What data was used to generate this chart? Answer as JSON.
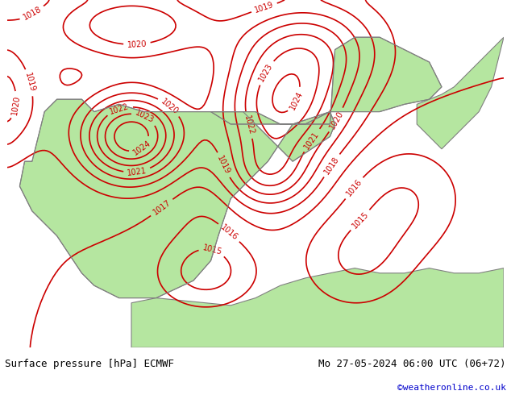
{
  "title_left": "Surface pressure [hPa] ECMWF",
  "title_right": "Mo 27-05-2024 06:00 UTC (06+72)",
  "credit": "©weatheronline.co.uk",
  "bg_color_land": "#b5e6a0",
  "bg_color_sea": "#d8d8d8",
  "contour_color": "#cc0000",
  "label_color": "#cc0000",
  "border_color": "#808080",
  "text_color_left": "#000000",
  "text_color_right": "#000000",
  "credit_color": "#0000cc",
  "bottom_bar_color": "#c8c8c8",
  "pressure_min": 1015,
  "pressure_max": 1025,
  "contour_interval": 1,
  "figsize": [
    6.34,
    4.9
  ],
  "dpi": 100
}
